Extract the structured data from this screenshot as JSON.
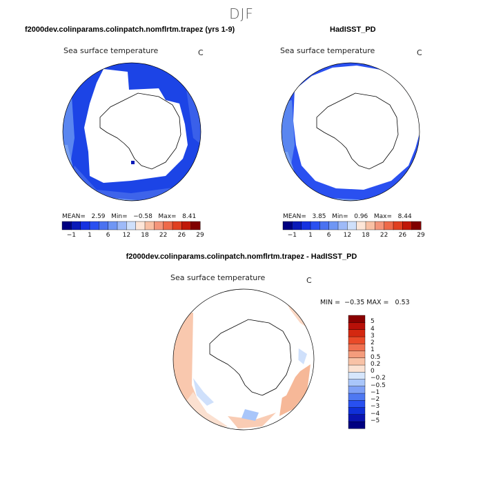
{
  "season": "DJF",
  "panels": [
    {
      "title": "f2000dev.colinparams.colinpatch.nomflrtm.trapez (yrs 1-9)",
      "variable": "Sea surface temperature",
      "units": "C",
      "stats": {
        "mean_label": "MEAN=",
        "mean": "2.59",
        "min_label": "Min=",
        "min": "−0.58",
        "max_label": "Max=",
        "max": "8.41"
      }
    },
    {
      "title": "HadISST_PD",
      "variable": "Sea surface temperature",
      "units": "C",
      "stats": {
        "mean_label": "MEAN=",
        "mean": "3.85",
        "min_label": "Min=",
        "min": "0.96",
        "max_label": "Max=",
        "max": "8.44"
      }
    },
    {
      "title": "f2000dev.colinparams.colinpatch.nomflrtm.trapez - HadISST_PD",
      "variable": "Sea surface temperature",
      "units": "C",
      "stats": {
        "min_label": "MIN =",
        "min": "−0.35",
        "max_label": "MAX =",
        "max": "0.53"
      }
    }
  ],
  "colorbar_sst": {
    "colors": [
      "#000080",
      "#0a1ab8",
      "#1632e0",
      "#2a50f0",
      "#4a72f0",
      "#6f96f4",
      "#9ebaf8",
      "#cfe0fb",
      "#fde6d8",
      "#f9c0a4",
      "#f4957a",
      "#ee6a4a",
      "#e04020",
      "#c01808",
      "#800000"
    ],
    "ticks": [
      "−1",
      "1",
      "6",
      "12",
      "18",
      "22",
      "26",
      "29"
    ]
  },
  "colorbar_diff": {
    "colors": [
      "#000080",
      "#0a14b0",
      "#1030d8",
      "#2850f0",
      "#4e78f2",
      "#7ea0f6",
      "#a9c6fa",
      "#d6e6fc",
      "#fbe2d2",
      "#f8c2a6",
      "#f49c7c",
      "#f07050",
      "#ea4a28",
      "#d42810",
      "#b81008",
      "#8a0000"
    ],
    "labels": [
      "5",
      "4",
      "3",
      "2",
      "1",
      "0.5",
      "0.2",
      "0",
      "−0.2",
      "−0.5",
      "−1",
      "−2",
      "−3",
      "−4",
      "−5"
    ]
  }
}
